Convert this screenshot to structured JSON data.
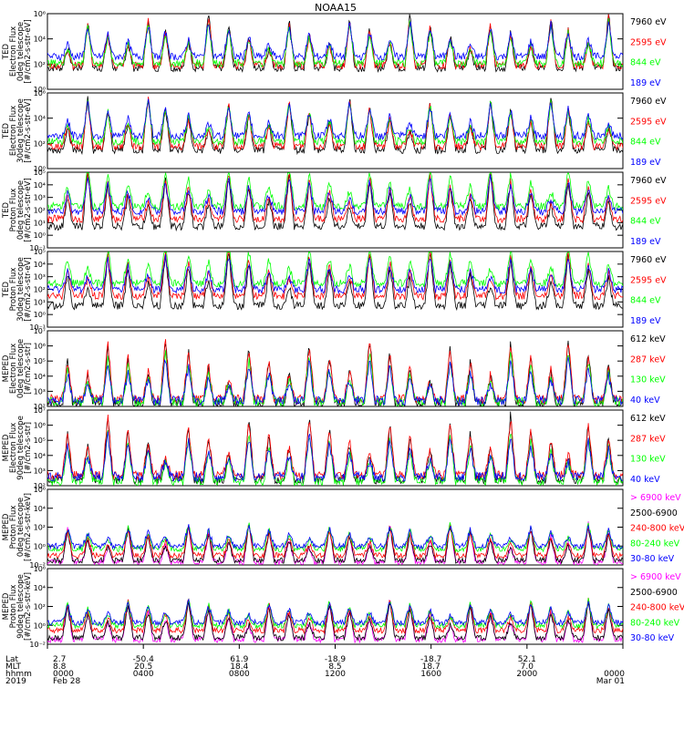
{
  "title": "NOAA15",
  "colors": {
    "black": "#000000",
    "red": "#ff0000",
    "green": "#00ff00",
    "blue": "#0000ff",
    "magenta": "#ff00ff"
  },
  "chart_data": [
    {
      "type": "line",
      "panel": "TED Electron Flux 0deg telescope",
      "ylabel_lines": [
        "TED",
        "Electron Flux",
        "0deg telescope",
        "[#/cm2-s-str-eV]"
      ],
      "y_scale": "log",
      "ylim": [
        1,
        1000000
      ],
      "y_ticks": [
        "10⁰",
        "10²",
        "10⁴",
        "10⁶"
      ],
      "series": [
        {
          "name": "7960 eV",
          "color": "black",
          "baseline": 50
        },
        {
          "name": "2595 eV",
          "color": "red",
          "baseline": 80
        },
        {
          "name": "844 eV",
          "color": "green",
          "baseline": 120
        },
        {
          "name": "189 eV",
          "color": "blue",
          "baseline": 400
        }
      ]
    },
    {
      "type": "line",
      "panel": "TED Electron Flux 30deg telescope",
      "ylabel_lines": [
        "TED",
        "Electron Flux",
        "30deg telescope",
        "[#/cm2-s-str-eV]"
      ],
      "y_scale": "log",
      "ylim": [
        1,
        1000000
      ],
      "y_ticks": [
        "10⁰",
        "10²",
        "10⁴",
        "10⁶"
      ],
      "series": [
        {
          "name": "7960 eV",
          "color": "black",
          "baseline": 30
        },
        {
          "name": "2595 eV",
          "color": "red",
          "baseline": 60
        },
        {
          "name": "844 eV",
          "color": "green",
          "baseline": 150
        },
        {
          "name": "189 eV",
          "color": "blue",
          "baseline": 400
        }
      ]
    },
    {
      "type": "line",
      "panel": "TED Proton Flux 0deg telescope",
      "ylabel_lines": [
        "TED",
        "Proton Flux",
        "0deg telescope",
        "[#/cm2-s-str-eV]"
      ],
      "y_scale": "log",
      "ylim": [
        0.1,
        100000
      ],
      "y_ticks": [
        "10⁻¹",
        "10⁰",
        "10¹",
        "10²",
        "10³",
        "10⁴",
        "10⁵"
      ],
      "series": [
        {
          "name": "7960 eV",
          "color": "black",
          "baseline": 5
        },
        {
          "name": "2595 eV",
          "color": "red",
          "baseline": 20
        },
        {
          "name": "844 eV",
          "color": "green",
          "baseline": 200
        },
        {
          "name": "189 eV",
          "color": "blue",
          "baseline": 80
        }
      ]
    },
    {
      "type": "line",
      "panel": "TED Proton Flux 30deg telescope",
      "ylabel_lines": [
        "TED",
        "Proton Flux",
        "30deg telescope",
        "[#/cm2-s-str-eV]"
      ],
      "y_scale": "log",
      "ylim": [
        0.1,
        100000
      ],
      "y_ticks": [
        "10⁻¹",
        "10⁰",
        "10¹",
        "10²",
        "10³",
        "10⁴",
        "10⁵"
      ],
      "series": [
        {
          "name": "7960 eV",
          "color": "black",
          "baseline": 5
        },
        {
          "name": "2595 eV",
          "color": "red",
          "baseline": 30
        },
        {
          "name": "844 eV",
          "color": "green",
          "baseline": 300
        },
        {
          "name": "189 eV",
          "color": "blue",
          "baseline": 100
        }
      ]
    },
    {
      "type": "line",
      "panel": "MEPED Electron Flux 0deg telescope",
      "ylabel_lines": [
        "MEPED",
        "Electron Flux",
        "0deg telescope",
        "[#/cm2-s-str]"
      ],
      "y_scale": "log",
      "ylim": [
        100,
        10000000
      ],
      "y_ticks": [
        "10²",
        "10³",
        "10⁴",
        "10⁵",
        "10⁶",
        "10⁷"
      ],
      "series": [
        {
          "name": "612 keV",
          "color": "black",
          "baseline": 150
        },
        {
          "name": "287 keV",
          "color": "red",
          "baseline": 300
        },
        {
          "name": "130 keV",
          "color": "green",
          "baseline": 200
        },
        {
          "name": "40 keV",
          "color": "blue",
          "baseline": 250
        }
      ]
    },
    {
      "type": "line",
      "panel": "MEPED Electron Flux 90deg telescope",
      "ylabel_lines": [
        "MEPED",
        "Electron Flux",
        "90deg telescope",
        "[#/cm2-s-str]"
      ],
      "y_scale": "log",
      "ylim": [
        100,
        10000000
      ],
      "y_ticks": [
        "10²",
        "10³",
        "10⁴",
        "10⁵",
        "10⁶",
        "10⁷"
      ],
      "series": [
        {
          "name": "612 keV",
          "color": "black",
          "baseline": 250
        },
        {
          "name": "287 keV",
          "color": "red",
          "baseline": 500
        },
        {
          "name": "130 keV",
          "color": "green",
          "baseline": 200
        },
        {
          "name": "40 keV",
          "color": "blue",
          "baseline": 400
        }
      ]
    },
    {
      "type": "line",
      "panel": "MEPED Proton Flux 0deg telescope",
      "ylabel_lines": [
        "MEPED",
        "Proton Flux",
        "0deg telescope",
        "[#/cm2-s-str-keV]"
      ],
      "y_scale": "log",
      "ylim": [
        0.01,
        1000000
      ],
      "y_ticks": [
        "10⁻²",
        "10⁰",
        "10²",
        "10⁴",
        "10⁶"
      ],
      "series": [
        {
          "name": "> 6900 keV",
          "color": "magenta",
          "baseline": 0.02
        },
        {
          "name": "2500-6900",
          "color": "black",
          "baseline": 0.03
        },
        {
          "name": "240-800 keV",
          "color": "red",
          "baseline": 0.1
        },
        {
          "name": "80-240 keV",
          "color": "green",
          "baseline": 0.5
        },
        {
          "name": "30-80 keV",
          "color": "blue",
          "baseline": 1
        }
      ]
    },
    {
      "type": "line",
      "panel": "MEPED Proton Flux 90deg telescope",
      "ylabel_lines": [
        "MEPED",
        "Proton Flux",
        "90deg telescope",
        "[#/cm2-s-str-keV]"
      ],
      "y_scale": "log",
      "ylim": [
        0.01,
        1000000
      ],
      "y_ticks": [
        "10⁻²",
        "10⁰",
        "10²",
        "10⁴",
        "10⁶"
      ],
      "series": [
        {
          "name": "> 6900 keV",
          "color": "magenta",
          "baseline": 0.03
        },
        {
          "name": "2500-6900",
          "color": "black",
          "baseline": 0.05
        },
        {
          "name": "240-800 keV",
          "color": "red",
          "baseline": 0.3
        },
        {
          "name": "80-240 keV",
          "color": "green",
          "baseline": 1
        },
        {
          "name": "30-80 keV",
          "color": "blue",
          "baseline": 2
        }
      ]
    }
  ],
  "x_axis": {
    "row_labels": [
      "Lat",
      "MLT",
      "hhmm",
      "2019"
    ],
    "ticks": [
      {
        "lat": "2.7",
        "mlt": "8.8",
        "hhmm": "0000",
        "date": "Feb 28"
      },
      {
        "lat": "-50.4",
        "mlt": "20.5",
        "hhmm": "0400",
        "date": ""
      },
      {
        "lat": "61.9",
        "mlt": "18.4",
        "hhmm": "0800",
        "date": ""
      },
      {
        "lat": "-18.9",
        "mlt": "8.5",
        "hhmm": "1200",
        "date": ""
      },
      {
        "lat": "-18.7",
        "mlt": "18.7",
        "hhmm": "1600",
        "date": ""
      },
      {
        "lat": "52.1",
        "mlt": "7.0",
        "hhmm": "2000",
        "date": ""
      },
      {
        "lat": "",
        "mlt": "",
        "hhmm": "0000",
        "date": "Mar 01"
      }
    ]
  }
}
